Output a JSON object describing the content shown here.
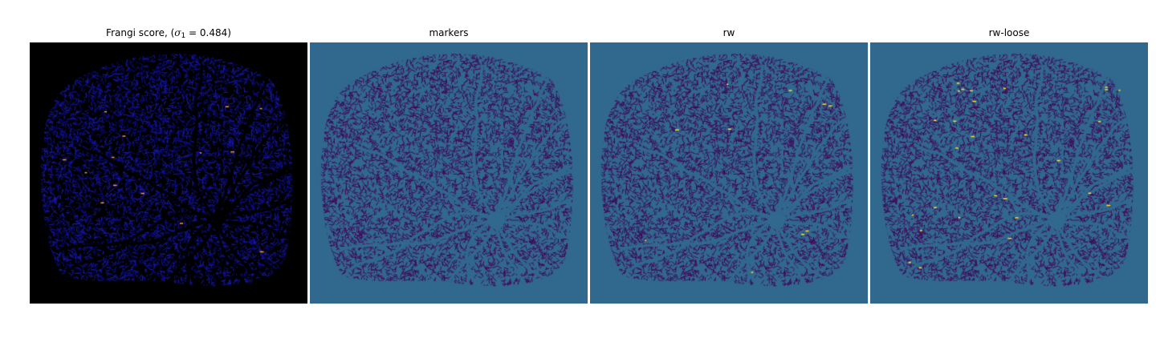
{
  "figure": {
    "panels": [
      {
        "id": "frangi",
        "title_prefix": "Frangi score, (",
        "title_symbol": "σ",
        "title_subscript": "1",
        "title_suffix": " = 0.484)",
        "background": "#000000",
        "colormap": "gnuplot2"
      },
      {
        "id": "markers",
        "title": "markers",
        "background": "#31688e",
        "colormap": "viridis"
      },
      {
        "id": "rw",
        "title": "rw",
        "background": "#31688e",
        "colormap": "viridis"
      },
      {
        "id": "rw-loose",
        "title": "rw-loose",
        "background": "#31688e",
        "colormap": "viridis"
      }
    ],
    "colors": {
      "frangi_vessel": "#0c0c8c",
      "frangi_highlight": "#ff9a3c",
      "label_background": "#31688e",
      "label_vessel": "#440154",
      "label_highlight": "#fde725"
    }
  }
}
